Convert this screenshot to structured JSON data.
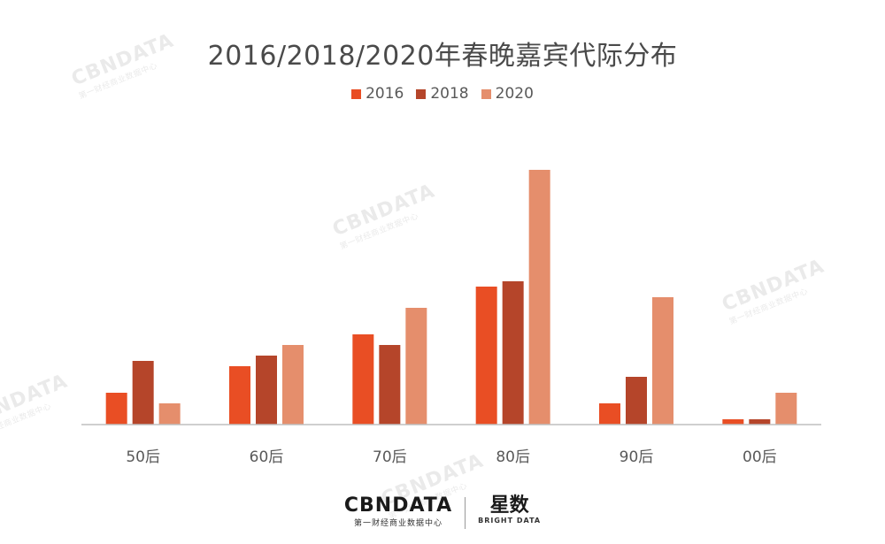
{
  "colors": {
    "2016": "#E94E24",
    "2018": "#B5452A",
    "2020": "#E58E6C",
    "axis": "#bfbfbf",
    "tick_text": "#595959"
  },
  "chart_data": {
    "type": "bar",
    "title": "2016/2018/2020年春晚嘉宾代际分布",
    "categories": [
      "50后",
      "60后",
      "70后",
      "80后",
      "90后",
      "00后"
    ],
    "series": [
      {
        "name": "2016",
        "values": [
          6,
          11,
          17,
          26,
          4,
          1
        ]
      },
      {
        "name": "2018",
        "values": [
          12,
          13,
          15,
          27,
          9,
          1
        ]
      },
      {
        "name": "2020",
        "values": [
          4,
          15,
          22,
          48,
          24,
          6
        ]
      }
    ],
    "xlabel": "",
    "ylabel": "",
    "ylim": [
      0,
      50
    ],
    "grid": false,
    "legend_position": "top-center"
  },
  "watermark": {
    "text": "CBNDATA",
    "sub": "第一财经商业数据中心"
  },
  "footer": {
    "brand_left": "CBNDATA",
    "brand_left_sub": "第一财经商业数据中心",
    "brand_right": "星数",
    "brand_right_sub": "BRIGHT DATA"
  }
}
